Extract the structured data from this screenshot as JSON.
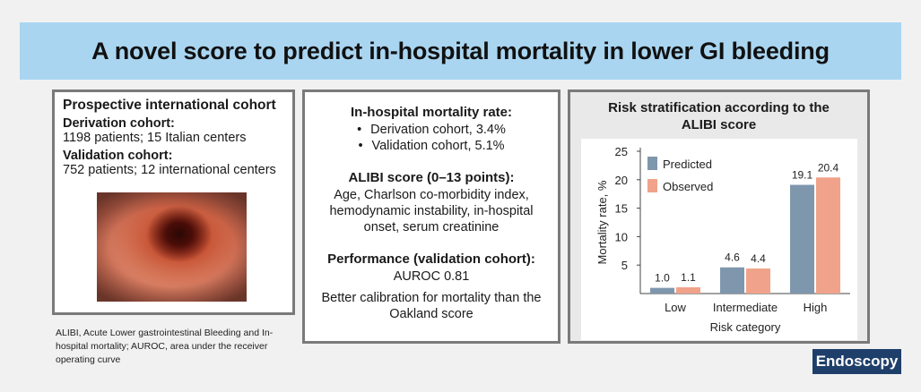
{
  "title": "A novel score to predict in-hospital mortality in lower GI bleeding",
  "cohort": {
    "heading": "Prospective international cohort",
    "derivation_label": "Derivation cohort:",
    "derivation_text": "1198 patients; 15 Italian centers",
    "validation_label": "Validation cohort:",
    "validation_text": "752 patients; 12 international centers"
  },
  "mortality": {
    "heading": "In-hospital mortality rate:",
    "items": [
      "Derivation cohort, 3.4%",
      "Validation cohort, 5.1%"
    ]
  },
  "alibi": {
    "heading": "ALIBI score (0–13 points):",
    "text": "Age, Charlson co-morbidity index, hemodynamic instability, in-hospital onset, serum creatinine"
  },
  "performance": {
    "heading": "Performance (validation cohort):",
    "auroc": "AUROC 0.81",
    "text": "Better calibration for mortality than the Oakland score"
  },
  "chart_title": "Risk stratification according to the ALIBI score",
  "chart_data": {
    "type": "bar",
    "categories": [
      "Low",
      "Intermediate",
      "High"
    ],
    "series": [
      {
        "name": "Predicted",
        "values": [
          1.0,
          4.6,
          19.1
        ],
        "labels": [
          "1.0",
          "4.6",
          "19.1"
        ],
        "color": "#7f97ad"
      },
      {
        "name": "Observed",
        "values": [
          1.1,
          4.4,
          20.4
        ],
        "labels": [
          "1.1",
          "4.4",
          "20.4"
        ],
        "color": "#f0a38a"
      }
    ],
    "xlabel": "Risk category",
    "ylabel": "Mortality rate, %",
    "ylim": [
      0,
      25
    ],
    "yticks": [
      5,
      10,
      15,
      20,
      25
    ],
    "legend": "top-left",
    "grid": false
  },
  "footnote": "ALIBI, Acute Lower gastrointestinal Bleeding and In-hospital mortality; AUROC, area under the receiver operating curve",
  "logo": "Endoscopy"
}
